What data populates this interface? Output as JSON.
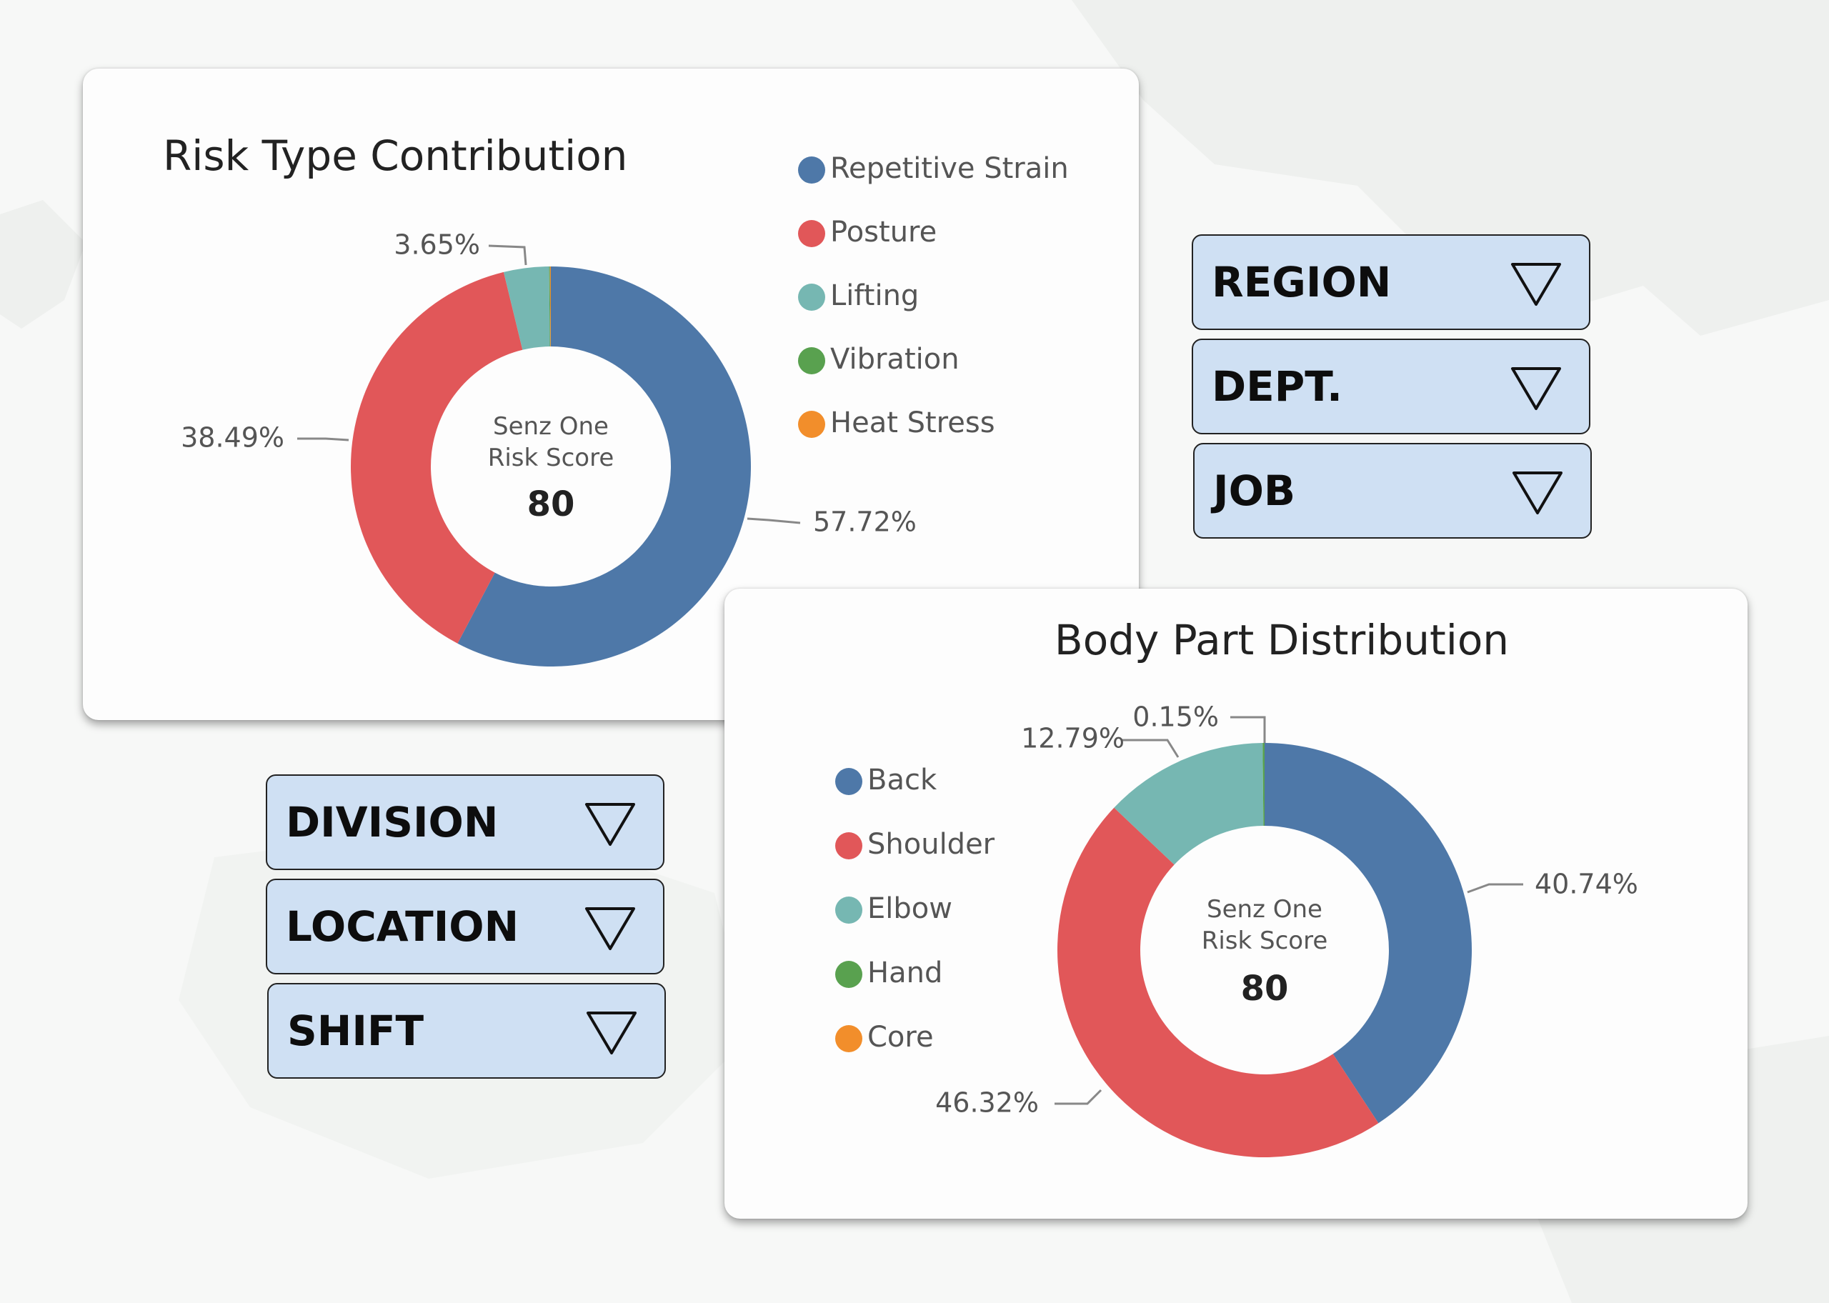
{
  "filters": [
    {
      "label": "REGION"
    },
    {
      "label": "DEPT."
    },
    {
      "label": "JOB"
    },
    {
      "label": "DIVISION"
    },
    {
      "label": "LOCATION"
    },
    {
      "label": "SHIFT"
    }
  ],
  "colors": {
    "blue": "#4e78a8",
    "red": "#e15759",
    "teal": "#76b7b2",
    "green": "#59a14f",
    "orange": "#f28e2b"
  },
  "chart_data": [
    {
      "type": "pie",
      "title": "Risk Type Contribution",
      "center_label": [
        "Senz One",
        "Risk Score"
      ],
      "center_value": "80",
      "legend_position": "right",
      "categories": [
        "Repetitive Strain",
        "Posture",
        "Lifting",
        "Vibration",
        "Heat Stress"
      ],
      "values": [
        57.72,
        38.49,
        3.65,
        0.07,
        0.07
      ],
      "data_labels": [
        "57.72%",
        "38.49%",
        "3.65%",
        "",
        ""
      ],
      "colors": [
        "#4e78a8",
        "#e15759",
        "#76b7b2",
        "#59a14f",
        "#f28e2b"
      ]
    },
    {
      "type": "pie",
      "title": "Body Part Distribution",
      "center_label": [
        "Senz One",
        "Risk Score"
      ],
      "center_value": "80",
      "legend_position": "left",
      "categories": [
        "Back",
        "Shoulder",
        "Elbow",
        "Hand",
        "Core"
      ],
      "values": [
        40.74,
        46.32,
        12.79,
        0.15,
        0.0
      ],
      "data_labels": [
        "40.74%",
        "46.32%",
        "12.79%",
        "0.15%",
        ""
      ],
      "colors": [
        "#4e78a8",
        "#e15759",
        "#76b7b2",
        "#59a14f",
        "#f28e2b"
      ]
    }
  ]
}
